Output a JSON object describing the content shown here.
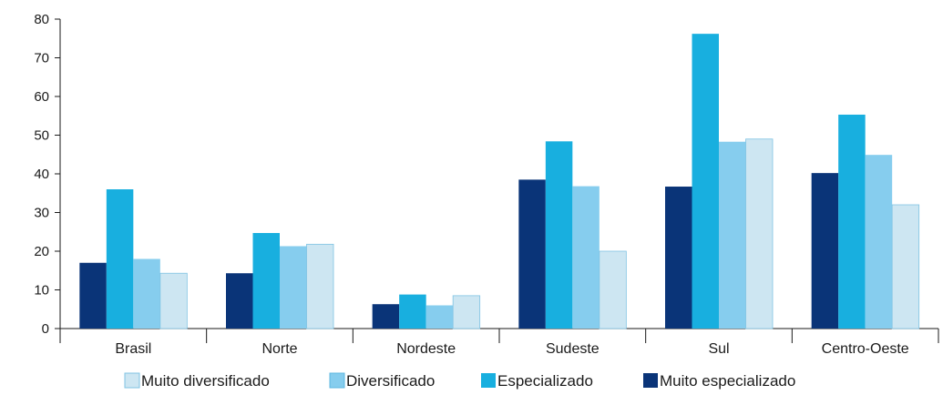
{
  "chart_data": {
    "type": "bar",
    "categories": [
      "Brasil",
      "Norte",
      "Nordeste",
      "Sudeste",
      "Sul",
      "Centro-Oeste"
    ],
    "series": [
      {
        "name": "Muito especializado",
        "color": "#0a3478",
        "values": [
          17,
          14.3,
          6.3,
          38.5,
          36.7,
          40.2
        ]
      },
      {
        "name": "Especializado",
        "color": "#18afdf",
        "values": [
          36,
          24.7,
          8.8,
          48.4,
          76.2,
          55.3
        ]
      },
      {
        "name": "Diversificado",
        "color": "#86cdee",
        "values": [
          18,
          21.3,
          6,
          36.8,
          48.3,
          44.9
        ]
      },
      {
        "name": "Muito diversificado",
        "color": "#cde6f2",
        "values": [
          14.3,
          21.8,
          8.5,
          20,
          49,
          32
        ]
      }
    ],
    "legend_order": [
      "Muito diversificado",
      "Diversificado",
      "Especializado",
      "Muito especializado"
    ],
    "ylim": [
      0,
      80
    ],
    "yticks": [
      0,
      10,
      20,
      30,
      40,
      50,
      60,
      70,
      80
    ],
    "grid": false,
    "legend_position": "bottom",
    "title": "",
    "xlabel": "",
    "ylabel": ""
  }
}
